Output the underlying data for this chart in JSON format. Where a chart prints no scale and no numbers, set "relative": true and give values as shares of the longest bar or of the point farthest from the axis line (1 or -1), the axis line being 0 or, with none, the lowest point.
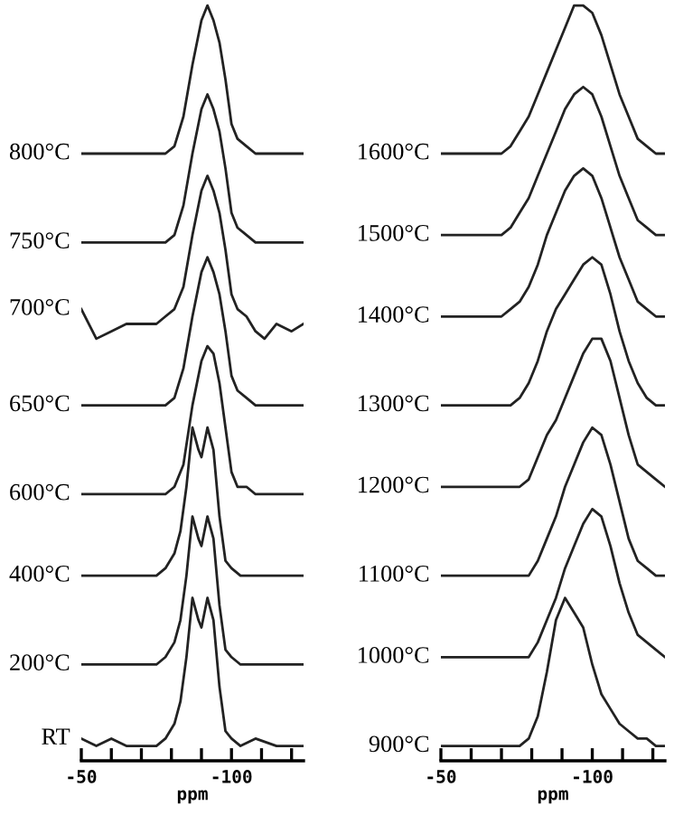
{
  "chart_data": [
    {
      "type": "line",
      "relative": true,
      "xlabel": "ppm",
      "xlim": [
        -50,
        -124
      ],
      "xticks": [
        -50,
        {
          "value": -60,
          "label": null
        },
        {
          "value": -70,
          "label": null
        },
        {
          "value": -80,
          "label": null
        },
        {
          "value": -90,
          "label": null
        },
        -100,
        {
          "value": -110,
          "label": null
        },
        {
          "value": -120,
          "label": null
        }
      ],
      "tick_labels": "x",
      "grid": false,
      "legend": false,
      "color": "#222222",
      "series": [
        {
          "name": "800°C",
          "x": [
            -50,
            -55,
            -60,
            -65,
            -70,
            -75,
            -78,
            -81,
            -84,
            -87,
            -90,
            -92,
            -94,
            -96,
            -98,
            -100,
            -102,
            -105,
            -108,
            -111,
            -115,
            -120,
            -124
          ],
          "values": [
            0.8,
            0.8,
            0.8,
            0.8,
            0.8,
            0.8,
            0.8,
            0.81,
            0.85,
            0.92,
            0.98,
            1.0,
            0.98,
            0.95,
            0.9,
            0.84,
            0.82,
            0.81,
            0.8,
            0.8,
            0.8,
            0.8,
            0.8
          ]
        },
        {
          "name": "750°C",
          "x": [
            -50,
            -55,
            -60,
            -65,
            -70,
            -75,
            -78,
            -81,
            -84,
            -87,
            -90,
            -92,
            -94,
            -96,
            -98,
            -100,
            -102,
            -105,
            -108,
            -111,
            -115,
            -120,
            -124
          ],
          "values": [
            0.68,
            0.68,
            0.68,
            0.68,
            0.68,
            0.68,
            0.68,
            0.69,
            0.73,
            0.8,
            0.86,
            0.88,
            0.86,
            0.83,
            0.78,
            0.72,
            0.7,
            0.69,
            0.68,
            0.68,
            0.68,
            0.68,
            0.68
          ]
        },
        {
          "name": "700°C",
          "x": [
            -50,
            -55,
            -60,
            -65,
            -70,
            -75,
            -78,
            -81,
            -84,
            -87,
            -90,
            -92,
            -94,
            -96,
            -98,
            -100,
            -102,
            -105,
            -108,
            -111,
            -115,
            -120,
            -124
          ],
          "values": [
            0.59,
            0.55,
            0.56,
            0.57,
            0.57,
            0.57,
            0.58,
            0.59,
            0.62,
            0.69,
            0.75,
            0.77,
            0.75,
            0.72,
            0.67,
            0.61,
            0.59,
            0.58,
            0.56,
            0.55,
            0.57,
            0.56,
            0.57
          ]
        },
        {
          "name": "650°C",
          "x": [
            -50,
            -55,
            -60,
            -65,
            -70,
            -75,
            -78,
            -81,
            -84,
            -87,
            -90,
            -92,
            -94,
            -96,
            -98,
            -100,
            -102,
            -105,
            -108,
            -111,
            -115,
            -120,
            -124
          ],
          "values": [
            0.46,
            0.46,
            0.46,
            0.46,
            0.46,
            0.46,
            0.46,
            0.47,
            0.51,
            0.58,
            0.64,
            0.66,
            0.64,
            0.61,
            0.56,
            0.5,
            0.48,
            0.47,
            0.46,
            0.46,
            0.46,
            0.46,
            0.46
          ]
        },
        {
          "name": "600°C",
          "x": [
            -50,
            -55,
            -60,
            -65,
            -70,
            -75,
            -78,
            -81,
            -84,
            -87,
            -90,
            -92,
            -94,
            -96,
            -98,
            -100,
            -102,
            -105,
            -108,
            -111,
            -115,
            -120,
            -124
          ],
          "values": [
            0.34,
            0.34,
            0.34,
            0.34,
            0.34,
            0.34,
            0.34,
            0.35,
            0.38,
            0.46,
            0.52,
            0.54,
            0.53,
            0.49,
            0.43,
            0.37,
            0.35,
            0.35,
            0.34,
            0.34,
            0.34,
            0.34,
            0.34
          ]
        },
        {
          "name": "400°C",
          "x": [
            -50,
            -55,
            -60,
            -65,
            -70,
            -75,
            -78,
            -81,
            -83,
            -85,
            -87,
            -89,
            -90,
            -92,
            -94,
            -96,
            -98,
            -100,
            -103,
            -108,
            -115,
            -120,
            -124
          ],
          "values": [
            0.23,
            0.23,
            0.23,
            0.23,
            0.23,
            0.23,
            0.24,
            0.26,
            0.29,
            0.35,
            0.43,
            0.4,
            0.39,
            0.43,
            0.4,
            0.31,
            0.25,
            0.24,
            0.23,
            0.23,
            0.23,
            0.23,
            0.23
          ]
        },
        {
          "name": "200°C",
          "x": [
            -50,
            -55,
            -60,
            -65,
            -70,
            -75,
            -78,
            -81,
            -83,
            -85,
            -87,
            -89,
            -90,
            -92,
            -94,
            -96,
            -98,
            -100,
            -103,
            -108,
            -115,
            -120,
            -124
          ],
          "values": [
            0.11,
            0.11,
            0.11,
            0.11,
            0.11,
            0.11,
            0.12,
            0.14,
            0.17,
            0.23,
            0.31,
            0.28,
            0.27,
            0.31,
            0.28,
            0.19,
            0.13,
            0.12,
            0.11,
            0.11,
            0.11,
            0.11,
            0.11
          ]
        },
        {
          "name": "RT",
          "x": [
            -50,
            -55,
            -60,
            -65,
            -70,
            -75,
            -78,
            -81,
            -83,
            -85,
            -87,
            -89,
            -90,
            -92,
            -94,
            -96,
            -98,
            -100,
            -103,
            -108,
            -115,
            -120,
            -124
          ],
          "values": [
            0.01,
            0,
            0.01,
            0,
            0,
            0,
            0.01,
            0.03,
            0.06,
            0.12,
            0.2,
            0.17,
            0.16,
            0.2,
            0.17,
            0.08,
            0.02,
            0.01,
            0,
            0.01,
            0,
            0,
            0
          ]
        }
      ]
    },
    {
      "type": "line",
      "relative": true,
      "xlabel": "ppm",
      "xlim": [
        -50,
        -124
      ],
      "xticks": [
        -50,
        {
          "value": -60,
          "label": null
        },
        {
          "value": -70,
          "label": null
        },
        {
          "value": -80,
          "label": null
        },
        {
          "value": -90,
          "label": null
        },
        -100,
        {
          "value": -110,
          "label": null
        },
        {
          "value": -120,
          "label": null
        }
      ],
      "tick_labels": "x",
      "grid": false,
      "legend": false,
      "color": "#222222",
      "series": [
        {
          "name": "1600°C",
          "x": [
            -50,
            -55,
            -60,
            -65,
            -70,
            -73,
            -76,
            -79,
            -82,
            -85,
            -88,
            -91,
            -94,
            -97,
            -100,
            -103,
            -106,
            -109,
            -112,
            -115,
            -118,
            -121,
            -124
          ],
          "values": [
            0.8,
            0.8,
            0.8,
            0.8,
            0.8,
            0.81,
            0.83,
            0.85,
            0.88,
            0.91,
            0.94,
            0.97,
            1.0,
            1.0,
            0.99,
            0.96,
            0.92,
            0.88,
            0.85,
            0.82,
            0.81,
            0.8,
            0.8
          ]
        },
        {
          "name": "1500°C",
          "x": [
            -50,
            -55,
            -60,
            -65,
            -70,
            -73,
            -76,
            -79,
            -82,
            -85,
            -88,
            -91,
            -94,
            -97,
            -100,
            -103,
            -106,
            -109,
            -112,
            -115,
            -118,
            -121,
            -124
          ],
          "values": [
            0.69,
            0.69,
            0.69,
            0.69,
            0.69,
            0.7,
            0.72,
            0.74,
            0.77,
            0.8,
            0.83,
            0.86,
            0.88,
            0.89,
            0.88,
            0.85,
            0.81,
            0.77,
            0.74,
            0.71,
            0.7,
            0.69,
            0.69
          ]
        },
        {
          "name": "1400°C",
          "x": [
            -50,
            -55,
            -60,
            -65,
            -70,
            -73,
            -76,
            -79,
            -82,
            -85,
            -88,
            -91,
            -94,
            -97,
            -100,
            -103,
            -106,
            -109,
            -112,
            -115,
            -118,
            -121,
            -124
          ],
          "values": [
            0.58,
            0.58,
            0.58,
            0.58,
            0.58,
            0.59,
            0.6,
            0.62,
            0.65,
            0.69,
            0.72,
            0.75,
            0.77,
            0.78,
            0.77,
            0.74,
            0.7,
            0.66,
            0.63,
            0.6,
            0.59,
            0.58,
            0.58
          ]
        },
        {
          "name": "1300°C",
          "x": [
            -50,
            -55,
            -60,
            -65,
            -70,
            -73,
            -76,
            -79,
            -82,
            -85,
            -88,
            -91,
            -94,
            -97,
            -100,
            -103,
            -106,
            -109,
            -112,
            -115,
            -118,
            -121,
            -124
          ],
          "values": [
            0.46,
            0.46,
            0.46,
            0.46,
            0.46,
            0.46,
            0.47,
            0.49,
            0.52,
            0.56,
            0.59,
            0.61,
            0.63,
            0.65,
            0.66,
            0.65,
            0.61,
            0.56,
            0.52,
            0.49,
            0.47,
            0.46,
            0.46
          ]
        },
        {
          "name": "1200°C",
          "x": [
            -50,
            -55,
            -60,
            -65,
            -70,
            -73,
            -76,
            -79,
            -82,
            -85,
            -88,
            -91,
            -94,
            -97,
            -100,
            -103,
            -106,
            -109,
            -112,
            -115,
            -118,
            -121,
            -124
          ],
          "values": [
            0.35,
            0.35,
            0.35,
            0.35,
            0.35,
            0.35,
            0.35,
            0.36,
            0.39,
            0.42,
            0.44,
            0.47,
            0.5,
            0.53,
            0.55,
            0.55,
            0.52,
            0.47,
            0.42,
            0.38,
            0.37,
            0.36,
            0.35
          ]
        },
        {
          "name": "1100°C",
          "x": [
            -50,
            -55,
            -60,
            -65,
            -70,
            -73,
            -76,
            -79,
            -82,
            -85,
            -88,
            -91,
            -94,
            -97,
            -100,
            -103,
            -106,
            -109,
            -112,
            -115,
            -118,
            -121,
            -124
          ],
          "values": [
            0.23,
            0.23,
            0.23,
            0.23,
            0.23,
            0.23,
            0.23,
            0.23,
            0.25,
            0.28,
            0.31,
            0.35,
            0.38,
            0.41,
            0.43,
            0.42,
            0.38,
            0.33,
            0.28,
            0.25,
            0.24,
            0.23,
            0.23
          ]
        },
        {
          "name": "1000°C",
          "x": [
            -50,
            -55,
            -60,
            -65,
            -70,
            -73,
            -76,
            -79,
            -82,
            -85,
            -88,
            -91,
            -94,
            -97,
            -100,
            -103,
            -106,
            -109,
            -112,
            -115,
            -118,
            -121,
            -124
          ],
          "values": [
            0.12,
            0.12,
            0.12,
            0.12,
            0.12,
            0.12,
            0.12,
            0.12,
            0.14,
            0.17,
            0.2,
            0.24,
            0.27,
            0.3,
            0.32,
            0.31,
            0.27,
            0.22,
            0.18,
            0.15,
            0.14,
            0.13,
            0.12
          ]
        },
        {
          "name": "900°C",
          "x": [
            -50,
            -55,
            -60,
            -65,
            -70,
            -73,
            -76,
            -79,
            -82,
            -85,
            -88,
            -91,
            -94,
            -97,
            -100,
            -103,
            -106,
            -109,
            -112,
            -115,
            -118,
            -121,
            -124
          ],
          "values": [
            0,
            0,
            0,
            0,
            0,
            0,
            0,
            0.01,
            0.04,
            0.1,
            0.17,
            0.2,
            0.18,
            0.16,
            0.11,
            0.07,
            0.05,
            0.03,
            0.02,
            0.01,
            0.01,
            0,
            0
          ]
        }
      ]
    }
  ]
}
